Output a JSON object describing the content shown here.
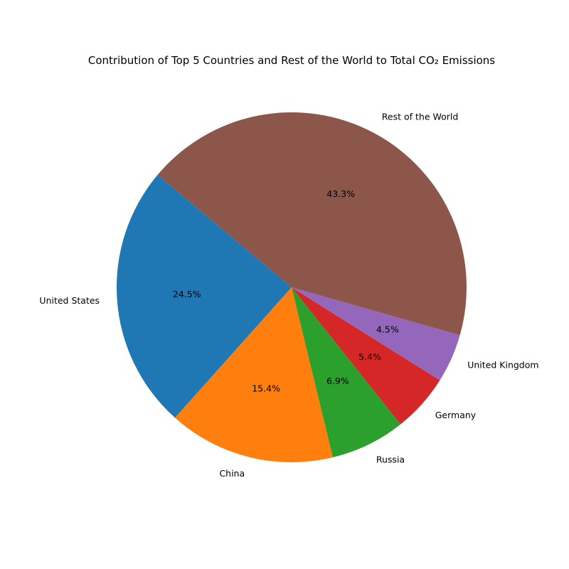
{
  "chart_data": {
    "type": "pie",
    "title": "Contribution of Top 5 Countries and Rest of the World to Total CO₂ Emissions",
    "slices": [
      {
        "label": "United States",
        "value": 24.5,
        "pct_label": "24.5%",
        "color": "#1f77b4"
      },
      {
        "label": "China",
        "value": 15.4,
        "pct_label": "15.4%",
        "color": "#ff7f0e"
      },
      {
        "label": "Russia",
        "value": 6.9,
        "pct_label": "6.9%",
        "color": "#2ca02c"
      },
      {
        "label": "Germany",
        "value": 5.4,
        "pct_label": "5.4%",
        "color": "#d62728"
      },
      {
        "label": "United Kingdom",
        "value": 4.5,
        "pct_label": "4.5%",
        "color": "#9467bd"
      },
      {
        "label": "Rest of the World",
        "value": 43.3,
        "pct_label": "43.3%",
        "color": "#8c564b"
      }
    ],
    "start_angle_deg": 140,
    "direction": "counterclockwise"
  }
}
